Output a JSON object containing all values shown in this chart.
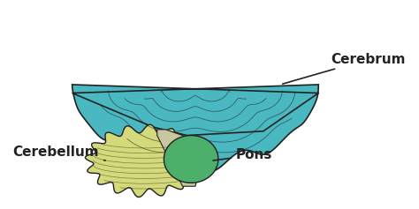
{
  "background_color": "#ffffff",
  "cerebrum_color": "#4ab8c1",
  "cerebellum_color": "#d4d97a",
  "pons_color": "#4caf6a",
  "brainstem_color": "#c8c8a0",
  "label_cerebrum": "Cerebrum",
  "label_cerebellum": "Cerebellum",
  "label_pons": "Pons",
  "label_fontsize": 11,
  "label_fontweight": "bold",
  "line_color": "#222222",
  "figsize": [
    4.74,
    2.37
  ],
  "dpi": 100
}
